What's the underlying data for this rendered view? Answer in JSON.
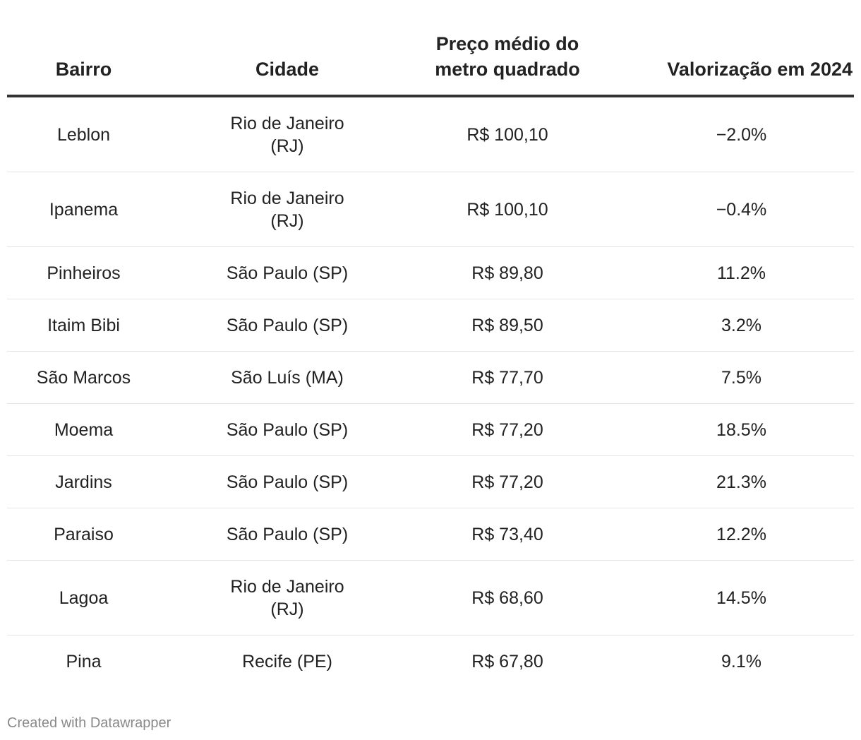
{
  "chart_data": {
    "type": "table",
    "columns": [
      "Bairro",
      "Cidade",
      "Preço médio do metro quadrado",
      "Valorização em 2024"
    ],
    "header": {
      "bairro": "Bairro",
      "cidade": "Cidade",
      "preco_line1": "Preço médio do",
      "preco_line2": "metro quadrado",
      "valorizacao": "Valorização em 2024"
    },
    "rows": [
      {
        "bairro": "Leblon",
        "cidade": "Rio de Janeiro (RJ)",
        "preco": "R$ 100,10",
        "valorizacao": "−2.0%"
      },
      {
        "bairro": "Ipanema",
        "cidade": "Rio de Janeiro (RJ)",
        "preco": "R$ 100,10",
        "valorizacao": "−0.4%"
      },
      {
        "bairro": "Pinheiros",
        "cidade": "São Paulo (SP)",
        "preco": "R$ 89,80",
        "valorizacao": "11.2%"
      },
      {
        "bairro": "Itaim Bibi",
        "cidade": "São Paulo (SP)",
        "preco": "R$ 89,50",
        "valorizacao": "3.2%"
      },
      {
        "bairro": "São Marcos",
        "cidade": "São Luís (MA)",
        "preco": "R$ 77,70",
        "valorizacao": "7.5%"
      },
      {
        "bairro": "Moema",
        "cidade": "São Paulo (SP)",
        "preco": "R$ 77,20",
        "valorizacao": "18.5%"
      },
      {
        "bairro": "Jardins",
        "cidade": "São Paulo (SP)",
        "preco": "R$ 77,20",
        "valorizacao": "21.3%"
      },
      {
        "bairro": "Paraiso",
        "cidade": "São Paulo (SP)",
        "preco": "R$ 73,40",
        "valorizacao": "12.2%"
      },
      {
        "bairro": "Lagoa",
        "cidade": "Rio de Janeiro (RJ)",
        "preco": "R$ 68,60",
        "valorizacao": "14.5%"
      },
      {
        "bairro": "Pina",
        "cidade": "Recife (PE)",
        "preco": "R$ 67,80",
        "valorizacao": "9.1%"
      }
    ]
  },
  "footer": {
    "credit": "Created with Datawrapper"
  },
  "colors": {
    "text": "#222222",
    "header_rule": "#333333",
    "row_rule": "#e4e4e4",
    "footer_text": "#8a8a8a"
  }
}
